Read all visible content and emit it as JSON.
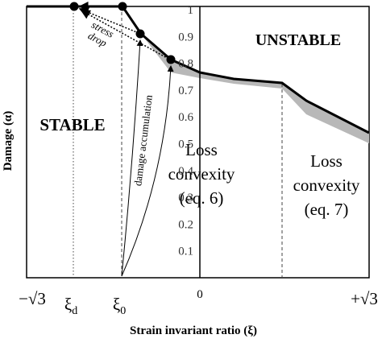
{
  "figure": {
    "y_axis_label": "Damage (α)",
    "x_axis_label": "Strain invariant ratio (ξ)",
    "yticks": [
      1,
      0.9,
      0.8,
      0.7,
      0.6,
      0.5,
      0.4,
      0.3,
      0.2,
      0.1
    ],
    "xticks": {
      "left": "−√3",
      "xi_d": {
        "symbol": "ξ",
        "subscript": "d"
      },
      "xi_0": {
        "symbol": "ξ",
        "subscript": "0"
      },
      "zero": "0",
      "right": "+√3"
    },
    "regions": {
      "stable": "STABLE",
      "unstable": "UNSTABLE"
    },
    "loss_convexity_6": [
      "Loss",
      "convexity",
      "(eq. 6)"
    ],
    "loss_convexity_7": [
      "Loss",
      "convexity",
      "(eq. 7)"
    ],
    "stress_drop": [
      "stress",
      "drop"
    ],
    "damage_accumulation": "damage accumulation"
  }
}
